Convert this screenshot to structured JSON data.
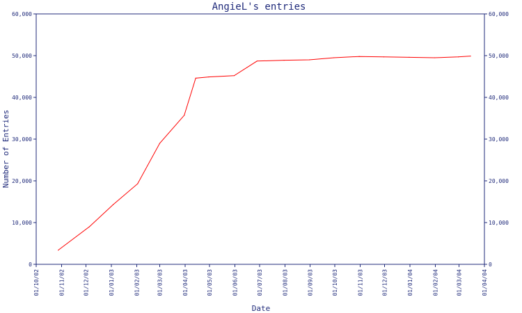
{
  "chart_data": {
    "type": "line",
    "title": "AngieL's entries",
    "xlabel": "Date",
    "ylabel": "Number of Entries",
    "x_tick_labels": [
      "01/10/02",
      "01/11/02",
      "01/12/02",
      "01/01/03",
      "01/02/03",
      "01/03/03",
      "01/04/03",
      "01/05/03",
      "01/06/03",
      "01/07/03",
      "01/08/03",
      "01/09/03",
      "01/10/03",
      "01/11/03",
      "01/12/03",
      "01/01/04",
      "01/02/04",
      "01/03/04",
      "01/04/04"
    ],
    "y_ticks": [
      0,
      10000,
      20000,
      30000,
      40000,
      50000,
      60000
    ],
    "y_tick_labels": [
      "0",
      "10,000",
      "20,000",
      "30,000",
      "40,000",
      "50,000",
      "60,000"
    ],
    "xlim": [
      "2002-10-01",
      "2004-04-01"
    ],
    "ylim": [
      0,
      60000
    ],
    "grid": false,
    "legend": "none",
    "colors": {
      "series": "#ff0000",
      "axis": "#1f2a7a"
    },
    "series": [
      {
        "x": [
          "2002-10-28",
          "2002-12-05",
          "2003-01-03",
          "2003-02-02",
          "2003-03-01",
          "2003-03-31",
          "2003-04-14",
          "2003-04-30",
          "2003-05-31",
          "2003-06-28",
          "2003-07-31",
          "2003-08-31",
          "2003-09-30",
          "2003-10-31",
          "2003-11-30",
          "2003-12-31",
          "2004-01-31",
          "2004-02-29",
          "2004-03-15"
        ],
        "values": [
          3400,
          9000,
          14300,
          19300,
          29000,
          35700,
          44600,
          44900,
          45200,
          48700,
          48900,
          49000,
          49500,
          49800,
          49700,
          49600,
          49500,
          49700,
          49900
        ]
      }
    ]
  }
}
